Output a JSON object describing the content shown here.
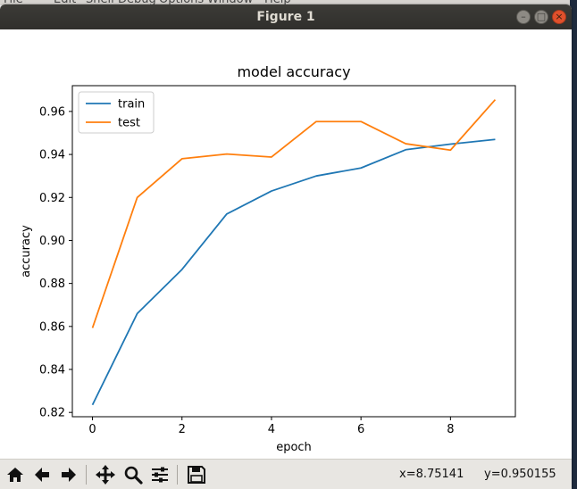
{
  "background_app": {
    "menu_items": [
      "File",
      "Edit",
      "Shell",
      "Debug",
      "Options",
      "Window",
      "Help"
    ]
  },
  "window": {
    "title": "Figure 1",
    "controls": {
      "minimize_glyph": "–",
      "maximize_glyph": "□",
      "close_glyph": "×"
    }
  },
  "toolbar": {
    "buttons": [
      {
        "name": "home-icon",
        "tooltip": "Home"
      },
      {
        "name": "back-arrow-icon",
        "tooltip": "Back"
      },
      {
        "name": "forward-arrow-icon",
        "tooltip": "Forward"
      },
      {
        "name": "pan-icon",
        "tooltip": "Pan"
      },
      {
        "name": "zoom-icon",
        "tooltip": "Zoom"
      },
      {
        "name": "subplots-icon",
        "tooltip": "Subplots"
      },
      {
        "name": "save-icon",
        "tooltip": "Save"
      }
    ],
    "coord_x": "x=8.75141",
    "coord_y": "y=0.950155"
  },
  "chart_data": {
    "type": "line",
    "title": "model accuracy",
    "xlabel": "epoch",
    "ylabel": "accuracy",
    "x": [
      0,
      1,
      2,
      3,
      4,
      5,
      6,
      7,
      8,
      9
    ],
    "xlim": [
      -0.45,
      9.45
    ],
    "ylim": [
      0.818,
      0.972
    ],
    "xticks": [
      0,
      2,
      4,
      6,
      8
    ],
    "xtick_labels": [
      "0",
      "2",
      "4",
      "6",
      "8"
    ],
    "yticks": [
      0.82,
      0.84,
      0.86,
      0.88,
      0.9,
      0.92,
      0.94,
      0.96
    ],
    "ytick_labels": [
      "0.82",
      "0.84",
      "0.86",
      "0.88",
      "0.90",
      "0.92",
      "0.94",
      "0.96"
    ],
    "grid": false,
    "legend_position": "upper left",
    "series": [
      {
        "name": "train",
        "color": "#1f77b4",
        "values": [
          0.8235,
          0.866,
          0.8865,
          0.9123,
          0.923,
          0.93,
          0.9337,
          0.9422,
          0.9448,
          0.947
        ]
      },
      {
        "name": "test",
        "color": "#ff7f0e",
        "values": [
          0.8593,
          0.92,
          0.938,
          0.9402,
          0.9388,
          0.9553,
          0.9553,
          0.945,
          0.942,
          0.9655
        ]
      }
    ]
  }
}
